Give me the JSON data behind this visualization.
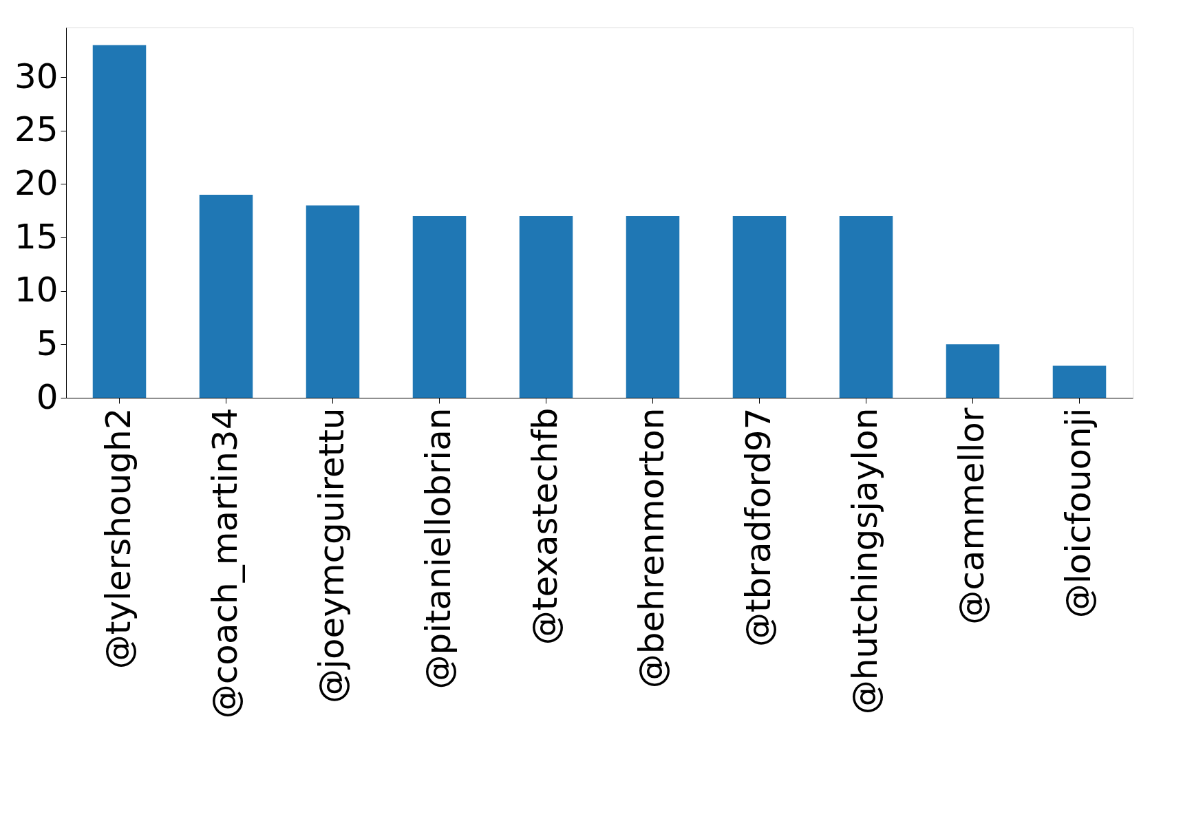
{
  "chart_data": {
    "type": "bar",
    "categories": [
      "@tylershough2",
      "@coach_martin34",
      "@joeymcguirettu",
      "@pitaniellobrian",
      "@texastechfb",
      "@behrenmorton",
      "@tbradford97",
      "@hutchingsjaylon",
      "@cammellor",
      "@loicfouonji"
    ],
    "values": [
      33,
      19,
      18,
      17,
      17,
      17,
      17,
      17,
      5,
      3
    ],
    "color": "#1f77b4",
    "ylim": [
      0,
      34.65
    ],
    "yticks": [
      0,
      5,
      10,
      15,
      20,
      25,
      30
    ],
    "grid": false
  }
}
